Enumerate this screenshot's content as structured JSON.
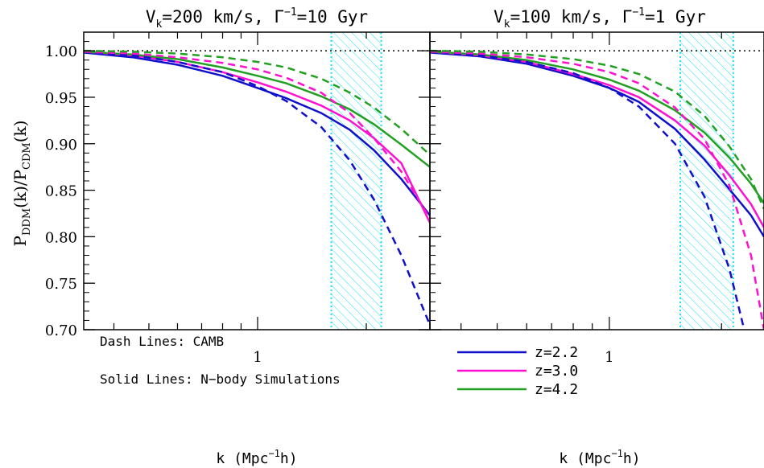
{
  "colors": {
    "z22": "#1010cc",
    "z30": "#ff10d0",
    "z42": "#22a022",
    "hatch": "#20e0f0",
    "axis": "#000000"
  },
  "figure": {
    "ylabel_main": "P",
    "ylabel_sub1": "DDM",
    "ylabel_mid": "(k)/P",
    "ylabel_sub2": "CDM",
    "ylabel_end": "(k)",
    "y_ticks": [
      "1.00",
      "0.95",
      "0.90",
      "0.85",
      "0.80",
      "0.75",
      "0.70"
    ],
    "annotation_1": "Dash Lines: CAMB",
    "annotation_2": "Solid Lines: N−body Simulations",
    "legend": [
      "z=2.2",
      "z=3.0",
      "z=4.2"
    ]
  },
  "chart_data": [
    {
      "type": "line",
      "title_parts": {
        "v": "V",
        "vsub": "k",
        "vval": "=200 km/s, Γ",
        "gsup": "−1",
        "gval": "=10 Gyr"
      },
      "xlabel": "k (Mpc",
      "xlabel_sup": "−1",
      "xlabel_end": "h)",
      "x_tick_label": "1",
      "x_scale": "log",
      "xlim": [
        0.33,
        3.0
      ],
      "ylim": [
        0.7,
        1.02
      ],
      "reference_line": 1.0,
      "shaded_band_k": [
        1.6,
        2.2
      ],
      "series": [
        {
          "name": "z=2.2",
          "style": "solid",
          "x": [
            0.33,
            0.45,
            0.6,
            0.8,
            1.0,
            1.2,
            1.5,
            1.8,
            2.1,
            2.5,
            3.0
          ],
          "y": [
            0.998,
            0.993,
            0.985,
            0.973,
            0.96,
            0.949,
            0.933,
            0.915,
            0.893,
            0.862,
            0.823
          ]
        },
        {
          "name": "z=3.0",
          "style": "solid",
          "x": [
            0.33,
            0.45,
            0.6,
            0.8,
            1.0,
            1.2,
            1.5,
            1.8,
            2.1,
            2.5,
            3.0
          ],
          "y": [
            0.999,
            0.995,
            0.988,
            0.977,
            0.966,
            0.956,
            0.941,
            0.925,
            0.906,
            0.879,
            0.815
          ]
        },
        {
          "name": "z=4.2",
          "style": "solid",
          "x": [
            0.33,
            0.45,
            0.6,
            0.8,
            1.0,
            1.2,
            1.5,
            1.8,
            2.1,
            2.5,
            3.0
          ],
          "y": [
            0.999,
            0.996,
            0.991,
            0.982,
            0.973,
            0.965,
            0.951,
            0.937,
            0.921,
            0.899,
            0.875
          ]
        },
        {
          "name": "z=2.2",
          "style": "dash",
          "x": [
            0.33,
            0.45,
            0.6,
            0.8,
            1.0,
            1.2,
            1.5,
            1.8,
            2.1,
            2.5,
            3.0
          ],
          "y": [
            0.999,
            0.995,
            0.988,
            0.977,
            0.962,
            0.946,
            0.918,
            0.882,
            0.84,
            0.78,
            0.705
          ]
        },
        {
          "name": "z=3.0",
          "style": "dash",
          "x": [
            0.33,
            0.45,
            0.6,
            0.8,
            1.0,
            1.2,
            1.5,
            1.8,
            2.1,
            2.5,
            3.0
          ],
          "y": [
            0.999,
            0.997,
            0.993,
            0.987,
            0.98,
            0.971,
            0.955,
            0.933,
            0.906,
            0.87,
            0.82
          ]
        },
        {
          "name": "z=4.2",
          "style": "dash",
          "x": [
            0.33,
            0.45,
            0.6,
            0.8,
            1.0,
            1.2,
            1.5,
            1.8,
            2.1,
            2.5,
            3.0
          ],
          "y": [
            1.0,
            0.999,
            0.997,
            0.993,
            0.988,
            0.982,
            0.97,
            0.955,
            0.939,
            0.916,
            0.888
          ]
        }
      ]
    },
    {
      "type": "line",
      "title_parts": {
        "v": "V",
        "vsub": "k",
        "vval": "=100 km/s, Γ",
        "gsup": "−1",
        "gval": "=1 Gyr"
      },
      "xlabel": "k (Mpc",
      "xlabel_sup": "−1",
      "xlabel_end": "h)",
      "x_tick_label": "1",
      "x_scale": "log",
      "xlim": [
        0.33,
        2.6
      ],
      "ylim": [
        0.7,
        1.02
      ],
      "reference_line": 1.0,
      "shaded_band_k": [
        1.55,
        2.15
      ],
      "series": [
        {
          "name": "z=2.2",
          "style": "solid",
          "x": [
            0.33,
            0.45,
            0.6,
            0.8,
            1.0,
            1.2,
            1.5,
            1.8,
            2.1,
            2.4,
            2.6
          ],
          "y": [
            0.998,
            0.994,
            0.986,
            0.973,
            0.96,
            0.945,
            0.916,
            0.883,
            0.851,
            0.823,
            0.8
          ]
        },
        {
          "name": "z=3.0",
          "style": "solid",
          "x": [
            0.33,
            0.45,
            0.6,
            0.8,
            1.0,
            1.2,
            1.5,
            1.8,
            2.1,
            2.4,
            2.6
          ],
          "y": [
            0.999,
            0.995,
            0.988,
            0.975,
            0.963,
            0.95,
            0.925,
            0.898,
            0.866,
            0.835,
            0.81
          ]
        },
        {
          "name": "z=4.2",
          "style": "solid",
          "x": [
            0.33,
            0.45,
            0.6,
            0.8,
            1.0,
            1.2,
            1.5,
            1.8,
            2.1,
            2.4,
            2.6
          ],
          "y": [
            0.999,
            0.996,
            0.99,
            0.98,
            0.969,
            0.957,
            0.936,
            0.912,
            0.885,
            0.857,
            0.836
          ]
        },
        {
          "name": "z=2.2",
          "style": "dash",
          "x": [
            0.33,
            0.45,
            0.6,
            0.8,
            1.0,
            1.2,
            1.5,
            1.8,
            2.1,
            2.3
          ],
          "y": [
            0.999,
            0.995,
            0.988,
            0.976,
            0.96,
            0.94,
            0.9,
            0.843,
            0.765,
            0.7
          ]
        },
        {
          "name": "z=3.0",
          "style": "dash",
          "x": [
            0.33,
            0.45,
            0.6,
            0.8,
            1.0,
            1.2,
            1.5,
            1.8,
            2.1,
            2.4,
            2.6
          ],
          "y": [
            0.999,
            0.997,
            0.993,
            0.986,
            0.977,
            0.965,
            0.939,
            0.905,
            0.855,
            0.78,
            0.7
          ]
        },
        {
          "name": "z=4.2",
          "style": "dash",
          "x": [
            0.33,
            0.45,
            0.6,
            0.8,
            1.0,
            1.2,
            1.5,
            1.8,
            2.1,
            2.4,
            2.6
          ],
          "y": [
            1.0,
            0.999,
            0.996,
            0.991,
            0.984,
            0.975,
            0.956,
            0.93,
            0.897,
            0.862,
            0.83
          ]
        }
      ]
    }
  ]
}
